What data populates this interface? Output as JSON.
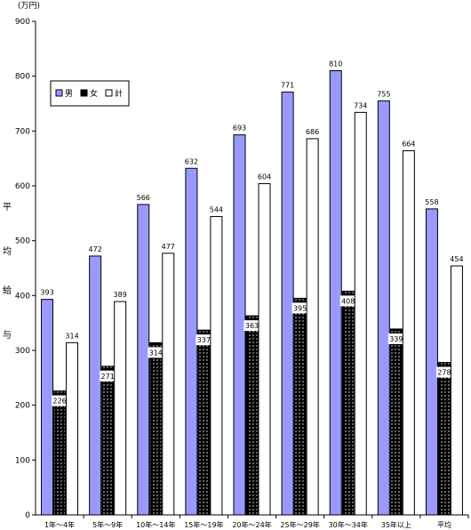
{
  "chart_data": {
    "type": "bar",
    "title": "",
    "unit_label": "(万円)",
    "ylabel_chars": [
      "平",
      "均",
      "給",
      "与"
    ],
    "ylim": [
      0,
      900
    ],
    "yticks": [
      0,
      100,
      200,
      300,
      400,
      500,
      600,
      700,
      800,
      900
    ],
    "categories": [
      "1年～4年",
      "5年～9年",
      "10年～14年",
      "15年～19年",
      "20年～24年",
      "25年～29年",
      "30年～34年",
      "35年以上",
      "平均"
    ],
    "series": [
      {
        "name": "男",
        "color": "#9999ff",
        "values": [
          393,
          472,
          566,
          632,
          693,
          771,
          810,
          755,
          558
        ]
      },
      {
        "name": "女",
        "color": "#000000",
        "values": [
          226,
          271,
          314,
          337,
          363,
          395,
          408,
          339,
          278
        ]
      },
      {
        "name": "計",
        "color": "#ffffff",
        "values": [
          314,
          389,
          477,
          544,
          604,
          686,
          734,
          664,
          454
        ]
      }
    ],
    "legend_position": "top-left",
    "grid": false
  }
}
